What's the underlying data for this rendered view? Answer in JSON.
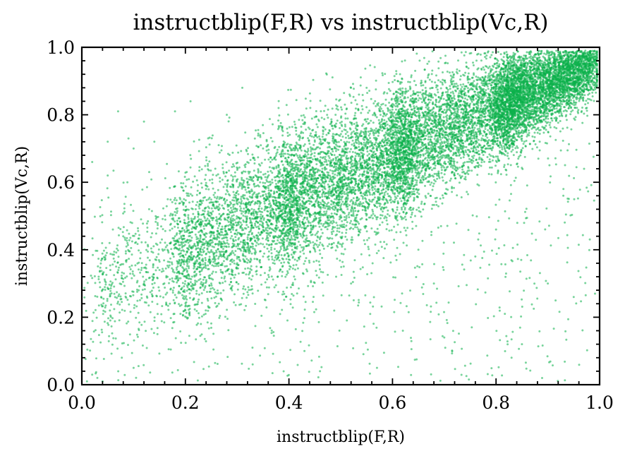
{
  "chart_data": {
    "type": "scatter",
    "title": "instructblip(F,R) vs instructblip(Vc,R)",
    "xlabel": "instructblip(F,R)",
    "ylabel": "instructblip(Vc,R)",
    "xlim": [
      0.0,
      1.0
    ],
    "ylim": [
      0.0,
      1.0
    ],
    "xticks": [
      0.0,
      0.2,
      0.4,
      0.6,
      0.8,
      1.0
    ],
    "yticks": [
      0.0,
      0.2,
      0.4,
      0.6,
      0.8,
      1.0
    ],
    "xtick_labels": [
      "0.0",
      "0.2",
      "0.4",
      "0.6",
      "0.8",
      "1.0"
    ],
    "ytick_labels": [
      "0.0",
      "0.2",
      "0.4",
      "0.6",
      "0.8",
      "1.0"
    ],
    "grid": false,
    "marker_color": "#0bb14a",
    "marker_alpha": 0.55,
    "n_points_approx": 14000,
    "trend": "positive correlation, dense cluster near (0.9, 0.9)",
    "points": [
      [
        0.01,
        0.01
      ],
      [
        0.02,
        0.03
      ],
      [
        0.02,
        0.66
      ],
      [
        0.03,
        0.02
      ],
      [
        0.04,
        0.01
      ],
      [
        0.05,
        0.72
      ],
      [
        0.05,
        0.62
      ],
      [
        0.06,
        0.46
      ],
      [
        0.07,
        0.81
      ],
      [
        0.08,
        0.44
      ],
      [
        0.09,
        0.73
      ],
      [
        0.1,
        0.7
      ],
      [
        0.1,
        0.05
      ],
      [
        0.11,
        0.28
      ],
      [
        0.12,
        0.78
      ],
      [
        0.12,
        0.3
      ],
      [
        0.13,
        0.52
      ],
      [
        0.14,
        0.72
      ],
      [
        0.15,
        0.34
      ],
      [
        0.16,
        0.4
      ],
      [
        0.17,
        0.24
      ],
      [
        0.18,
        0.81
      ],
      [
        0.18,
        0.44
      ],
      [
        0.19,
        0.38
      ],
      [
        0.2,
        0.32
      ],
      [
        0.2,
        0.22
      ],
      [
        0.21,
        0.84
      ],
      [
        0.22,
        0.48
      ],
      [
        0.22,
        0.36
      ],
      [
        0.23,
        0.18
      ],
      [
        0.24,
        0.58
      ],
      [
        0.25,
        0.42
      ],
      [
        0.25,
        0.3
      ],
      [
        0.26,
        0.62
      ],
      [
        0.27,
        0.38
      ],
      [
        0.28,
        0.8
      ],
      [
        0.28,
        0.45
      ],
      [
        0.29,
        0.28
      ],
      [
        0.3,
        0.52
      ],
      [
        0.3,
        0.36
      ],
      [
        0.31,
        0.88
      ],
      [
        0.32,
        0.6
      ],
      [
        0.32,
        0.42
      ],
      [
        0.33,
        0.06
      ],
      [
        0.34,
        0.48
      ],
      [
        0.35,
        0.38
      ],
      [
        0.35,
        0.7
      ],
      [
        0.36,
        0.55
      ],
      [
        0.37,
        0.44
      ],
      [
        0.38,
        0.82
      ],
      [
        0.38,
        0.5
      ],
      [
        0.39,
        0.6
      ],
      [
        0.4,
        0.46
      ],
      [
        0.4,
        0.36
      ],
      [
        0.41,
        0.68
      ],
      [
        0.42,
        0.55
      ],
      [
        0.43,
        0.1
      ],
      [
        0.43,
        0.62
      ],
      [
        0.44,
        0.5
      ],
      [
        0.45,
        0.72
      ],
      [
        0.45,
        0.4
      ],
      [
        0.46,
        0.04
      ],
      [
        0.47,
        0.58
      ],
      [
        0.48,
        0.66
      ],
      [
        0.48,
        0.48
      ],
      [
        0.49,
        0.8
      ],
      [
        0.5,
        0.6
      ],
      [
        0.5,
        0.52
      ],
      [
        0.51,
        0.7
      ],
      [
        0.52,
        0.62
      ],
      [
        0.52,
        0.3
      ],
      [
        0.53,
        0.74
      ],
      [
        0.54,
        0.56
      ],
      [
        0.55,
        0.66
      ],
      [
        0.55,
        0.88
      ],
      [
        0.56,
        0.6
      ],
      [
        0.57,
        0.05
      ],
      [
        0.57,
        0.7
      ],
      [
        0.58,
        0.62
      ],
      [
        0.59,
        0.76
      ],
      [
        0.6,
        0.66
      ],
      [
        0.6,
        0.52
      ],
      [
        0.61,
        0.9
      ],
      [
        0.62,
        0.7
      ],
      [
        0.62,
        0.16
      ],
      [
        0.63,
        0.64
      ],
      [
        0.64,
        0.78
      ],
      [
        0.65,
        0.68
      ],
      [
        0.65,
        0.4
      ],
      [
        0.66,
        0.74
      ],
      [
        0.67,
        0.92
      ],
      [
        0.68,
        0.7
      ],
      [
        0.68,
        0.3
      ],
      [
        0.69,
        0.78
      ],
      [
        0.7,
        0.72
      ],
      [
        0.7,
        0.14
      ],
      [
        0.71,
        0.82
      ],
      [
        0.72,
        0.74
      ],
      [
        0.73,
        0.62
      ],
      [
        0.74,
        0.8
      ],
      [
        0.75,
        0.76
      ],
      [
        0.76,
        0.86
      ],
      [
        0.76,
        0.38
      ],
      [
        0.77,
        0.78
      ],
      [
        0.78,
        0.82
      ],
      [
        0.79,
        0.7
      ],
      [
        0.8,
        0.84
      ],
      [
        0.8,
        0.46
      ],
      [
        0.81,
        0.8
      ],
      [
        0.82,
        0.86
      ],
      [
        0.83,
        0.08
      ],
      [
        0.83,
        0.76
      ],
      [
        0.84,
        0.88
      ],
      [
        0.85,
        0.84
      ],
      [
        0.85,
        0.12
      ],
      [
        0.86,
        0.9
      ],
      [
        0.87,
        0.86
      ],
      [
        0.88,
        0.78
      ],
      [
        0.88,
        0.92
      ],
      [
        0.89,
        0.88
      ],
      [
        0.9,
        0.9
      ],
      [
        0.9,
        0.3
      ],
      [
        0.91,
        0.86
      ],
      [
        0.92,
        0.92
      ],
      [
        0.93,
        0.88
      ],
      [
        0.93,
        0.56
      ],
      [
        0.94,
        0.94
      ],
      [
        0.95,
        0.9
      ],
      [
        0.95,
        0.26
      ],
      [
        0.96,
        0.93
      ],
      [
        0.97,
        0.95
      ],
      [
        0.97,
        0.64
      ],
      [
        0.98,
        0.96
      ],
      [
        0.99,
        0.98
      ]
    ]
  }
}
